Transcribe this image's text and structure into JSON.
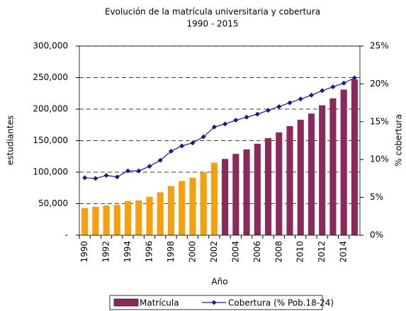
{
  "chart_data": {
    "type": "bar",
    "title": "Evolución de la matrícula universitaria y cobertura",
    "subtitle": "1990 - 2015",
    "x_label": "Año",
    "y_label": "estudiantes",
    "y2_label": "% cobertura",
    "categories": [
      "1990",
      null,
      "1992",
      null,
      "1994",
      null,
      "1996",
      null,
      "1998",
      null,
      "2000",
      null,
      "2002",
      null,
      "2004",
      null,
      "2006",
      null,
      "2008",
      null,
      "2010",
      null,
      "2012",
      null,
      "2014",
      null
    ],
    "series": [
      {
        "name": "Matrícula",
        "type": "bar",
        "color": "#8b2a5a",
        "colors": [
          "#f5a00f",
          "#f5a00f",
          "#f5a00f",
          "#f5a00f",
          "#f5a00f",
          "#f5a00f",
          "#f5a00f",
          "#f5a00f",
          "#f5a00f",
          "#f5a00f",
          "#f5a00f",
          "#f5a00f",
          "#f5a00f",
          "#8b2a5a",
          "#8b2a5a",
          "#8b2a5a",
          "#8b2a5a",
          "#8b2a5a",
          "#8b2a5a",
          "#8b2a5a",
          "#8b2a5a",
          "#8b2a5a",
          "#8b2a5a",
          "#8b2a5a",
          "#8b2a5a",
          "#8b2a5a"
        ],
        "values": [
          43000,
          45000,
          47000,
          48000,
          54000,
          55000,
          61000,
          68000,
          78000,
          86000,
          91000,
          100000,
          115000,
          121000,
          129000,
          136000,
          145000,
          154000,
          163000,
          173000,
          183000,
          193000,
          206000,
          217000,
          231000,
          247000
        ]
      },
      {
        "name": "Cobertura (% Pob.18-24)",
        "type": "line",
        "axis": "y2",
        "color": "#1a1a8c",
        "values": [
          7.6,
          7.5,
          7.9,
          7.7,
          8.5,
          8.5,
          9.1,
          9.9,
          11.1,
          11.8,
          12.2,
          13.0,
          14.3,
          14.7,
          15.2,
          15.6,
          16.0,
          16.5,
          17.0,
          17.5,
          18.0,
          18.5,
          19.1,
          19.6,
          20.1,
          20.8
        ]
      }
    ],
    "ylim": [
      0,
      300000
    ],
    "yticks": [
      {
        "value": 0,
        "label": "-"
      },
      {
        "value": 50000,
        "label": "50,000"
      },
      {
        "value": 100000,
        "label": "100,000"
      },
      {
        "value": 150000,
        "label": "150,000"
      },
      {
        "value": 200000,
        "label": "200,000"
      },
      {
        "value": 250000,
        "label": "250,000"
      },
      {
        "value": 300000,
        "label": "300,000"
      }
    ],
    "y2lim": [
      0,
      25
    ],
    "y2ticks": [
      {
        "value": 0,
        "label": "0%"
      },
      {
        "value": 5,
        "label": "5%"
      },
      {
        "value": 10,
        "label": "10%"
      },
      {
        "value": 15,
        "label": "15%"
      },
      {
        "value": 20,
        "label": "20%"
      },
      {
        "value": 25,
        "label": "25%"
      }
    ],
    "grid": true,
    "legend": "bottom"
  }
}
